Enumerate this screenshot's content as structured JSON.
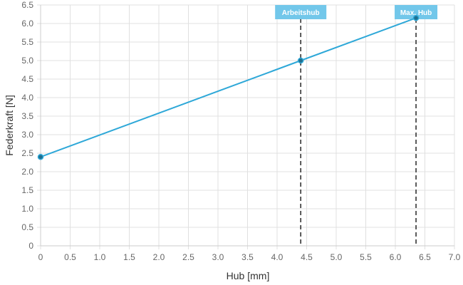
{
  "chart_data": {
    "type": "line",
    "title": "",
    "xlabel": "Hub [mm]",
    "ylabel": "Federkraft [N]",
    "xlim": [
      0,
      7.0
    ],
    "ylim": [
      0,
      6.5
    ],
    "xticks": [
      "0",
      "0.5",
      "1.0",
      "1.5",
      "2.0",
      "2.5",
      "3.0",
      "3.5",
      "4.0",
      "4.5",
      "5.0",
      "5.5",
      "6.0",
      "6.5",
      "7.0"
    ],
    "yticks": [
      "0",
      "0.5",
      "1.0",
      "1.5",
      "2.0",
      "2.5",
      "3.0",
      "3.5",
      "4.0",
      "4.5",
      "5.0",
      "5.5",
      "6.0",
      "6.5"
    ],
    "grid": true,
    "series": [
      {
        "color": "#2ea8d8",
        "points": [
          {
            "x": 0,
            "y": 2.4
          },
          {
            "x": 4.4,
            "y": 5.0
          },
          {
            "x": 6.35,
            "y": 6.15
          }
        ]
      }
    ],
    "annotations": [
      {
        "label": "Arbeitshub",
        "x": 4.4,
        "color": "#72c7ea"
      },
      {
        "label": "Max. Hub",
        "x": 6.35,
        "color": "#72c7ea"
      }
    ]
  }
}
